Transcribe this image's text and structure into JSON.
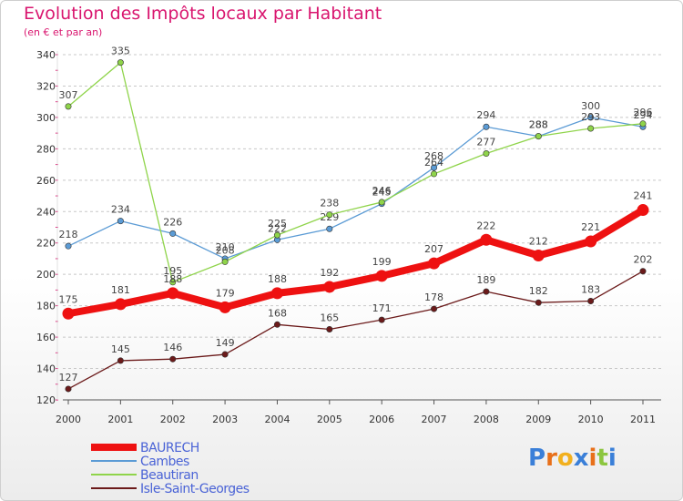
{
  "header": {
    "title": "Evolution des Impôts locaux par Habitant",
    "subtitle": "(en € et par an)"
  },
  "brand": {
    "letters": [
      "P",
      "r",
      "o",
      "x",
      "i",
      "t",
      "i"
    ],
    "colors": [
      "#3a7fd8",
      "#e8701a",
      "#f2b01e",
      "#3a7fd8",
      "#e8701a",
      "#8cc63f",
      "#3a7fd8"
    ]
  },
  "chart_data": {
    "type": "line",
    "title": "Evolution des Impôts locaux par Habitant",
    "subtitle": "(en € et par an)",
    "xlabel": "",
    "ylabel": "",
    "categories": [
      "2000",
      "2001",
      "2002",
      "2003",
      "2004",
      "2005",
      "2006",
      "2007",
      "2008",
      "2009",
      "2010",
      "2011"
    ],
    "ylim": [
      120,
      340
    ],
    "yticks": [
      120,
      140,
      160,
      180,
      200,
      220,
      240,
      260,
      280,
      300,
      320,
      340
    ],
    "grid": "horizontal dashed",
    "legend_position": "bottom-left",
    "series": [
      {
        "name": "BAURECH",
        "color": "#ee1111",
        "emphasis": true,
        "values": [
          175,
          181,
          188,
          179,
          188,
          192,
          199,
          207,
          222,
          212,
          221,
          241
        ]
      },
      {
        "name": "Cambes",
        "color": "#5b9bd5",
        "emphasis": false,
        "values": [
          218,
          234,
          226,
          210,
          222,
          229,
          245,
          268,
          294,
          288,
          300,
          294
        ]
      },
      {
        "name": "Beautiran",
        "color": "#8fd44a",
        "emphasis": false,
        "values": [
          307,
          335,
          195,
          208,
          225,
          238,
          246,
          264,
          277,
          288,
          293,
          296
        ]
      },
      {
        "name": "Isle-Saint-Georges",
        "color": "#6b1a1a",
        "emphasis": false,
        "values": [
          127,
          145,
          146,
          149,
          168,
          165,
          171,
          178,
          189,
          182,
          183,
          202
        ]
      }
    ]
  }
}
